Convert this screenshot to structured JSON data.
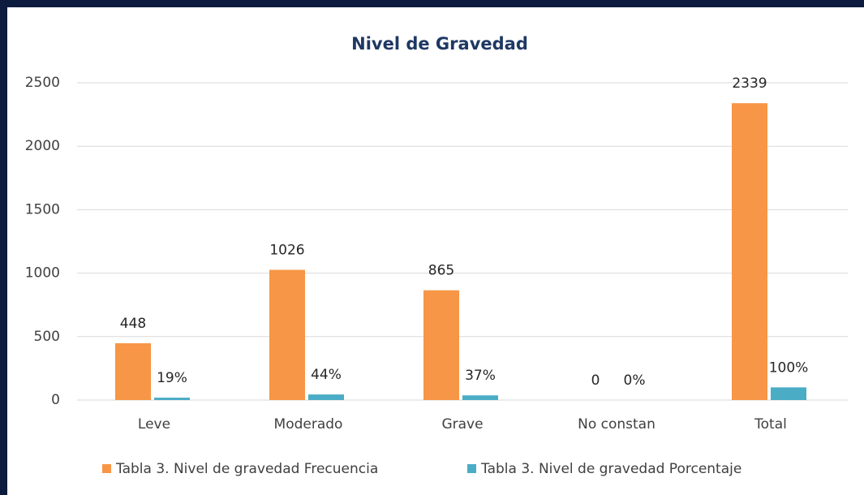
{
  "chart_data": {
    "type": "bar",
    "title": "Nivel de Gravedad",
    "categories": [
      "Leve",
      "Moderado",
      "Grave",
      "No constan",
      "Total"
    ],
    "series": [
      {
        "name": "Tabla 3. Nivel de gravedad Frecuencia",
        "color": "#f79646",
        "values": [
          448,
          1026,
          865,
          0,
          2339
        ]
      },
      {
        "name": "Tabla 3. Nivel de gravedad Porcentaje",
        "color": "#4bacc6",
        "values": [
          19,
          44,
          37,
          0,
          100
        ],
        "value_labels": [
          "19%",
          "44%",
          "37%",
          "0%",
          "100%"
        ]
      }
    ],
    "ylim": [
      0,
      2500
    ],
    "yticks": [
      0,
      500,
      1000,
      1500,
      2000,
      2500
    ],
    "grid": true,
    "legend": "bottom"
  }
}
